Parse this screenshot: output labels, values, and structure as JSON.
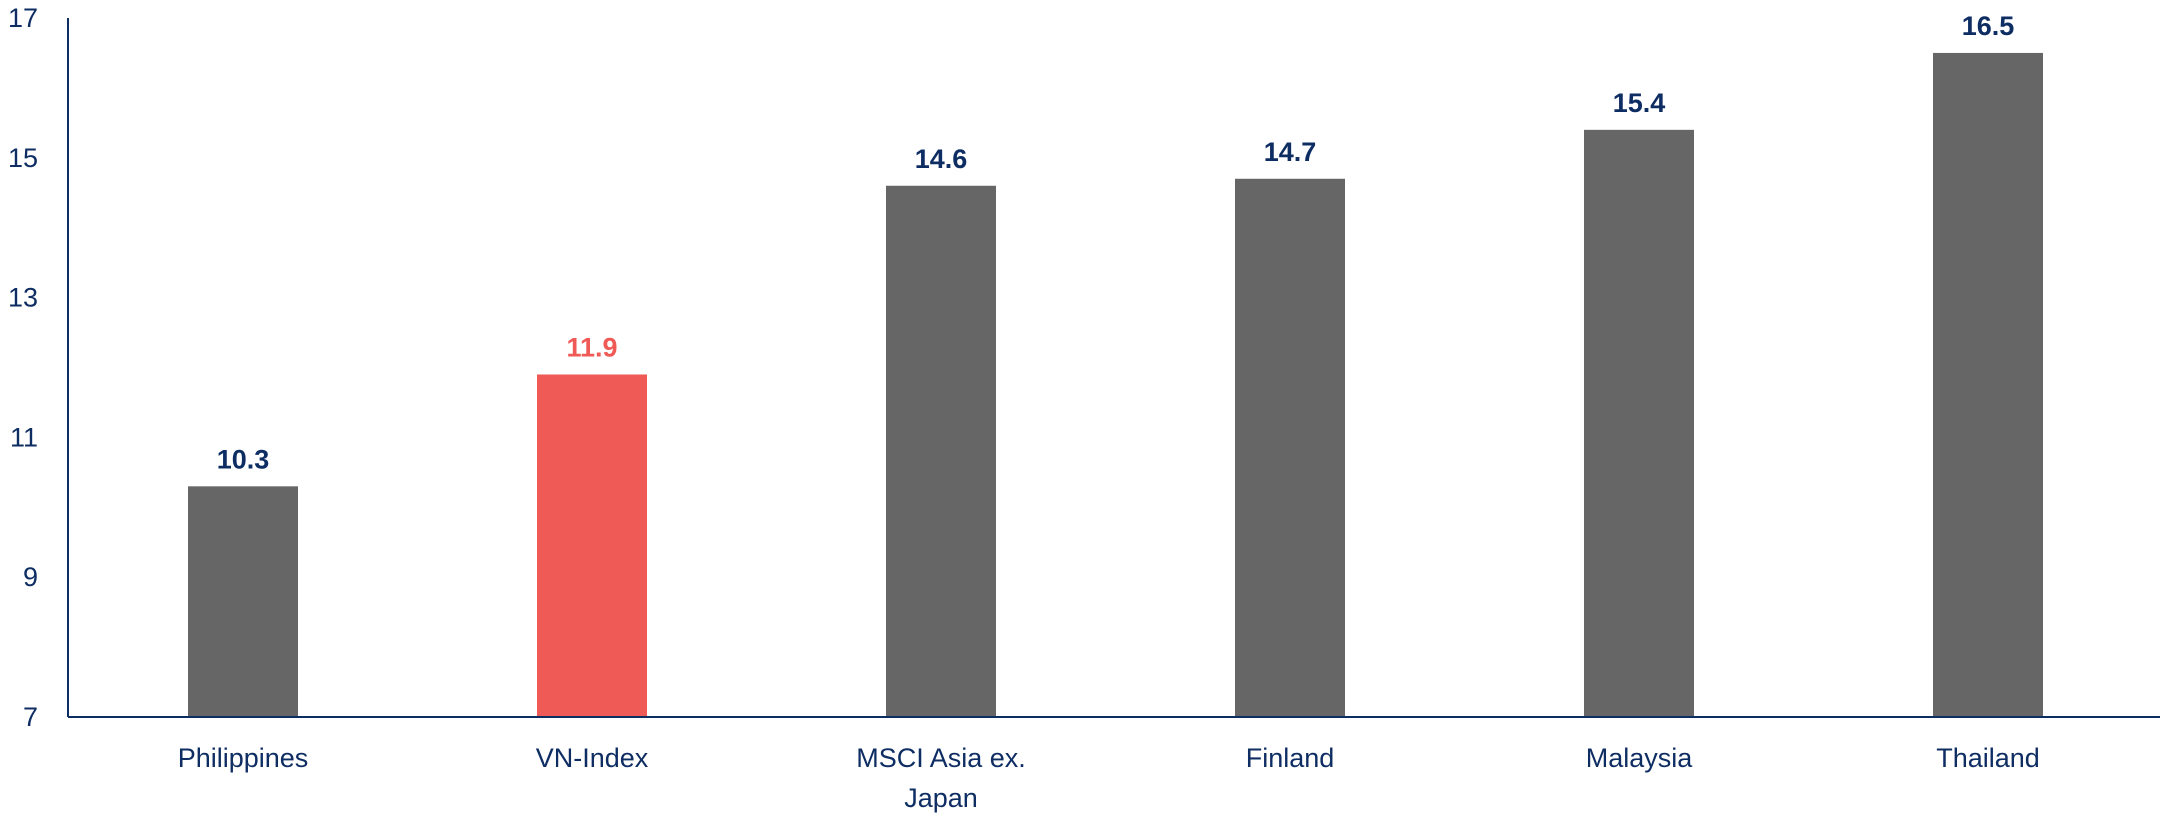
{
  "chart_data": {
    "type": "bar",
    "categories": [
      "Philippines",
      "VN-Index",
      "MSCI Asia ex. Japan",
      "Finland",
      "Malaysia",
      "Thailand"
    ],
    "category_lines": [
      [
        "Philippines"
      ],
      [
        "VN-Index"
      ],
      [
        "MSCI Asia ex.",
        "Japan"
      ],
      [
        "Finland"
      ],
      [
        "Malaysia"
      ],
      [
        "Thailand"
      ]
    ],
    "values": [
      10.3,
      11.9,
      14.6,
      14.7,
      15.4,
      16.5
    ],
    "value_labels": [
      "10.3",
      "11.9",
      "14.6",
      "14.7",
      "15.4",
      "16.5"
    ],
    "highlight_index": 1,
    "ylim": [
      7,
      17
    ],
    "yticks": [
      7,
      9,
      11,
      13,
      15,
      17
    ],
    "title": "",
    "xlabel": "",
    "ylabel": "",
    "grid": false,
    "legend": "none",
    "colors": {
      "bar": "#666666",
      "highlight": "#ef5a56",
      "text": "#0e2d63",
      "axis": "#0e2d63"
    }
  }
}
